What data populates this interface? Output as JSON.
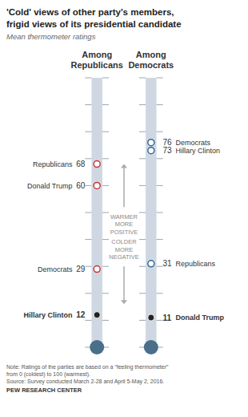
{
  "chart_data": {
    "type": "scatter",
    "title": "'Cold' views of other party’s members,\nfrigid views of its presidential candidate",
    "subtitle": "Mean thermometer ratings",
    "categories": [
      "Among\nRepublicans",
      "Among\nDemocrats"
    ],
    "series": [
      {
        "x": [
          "Among\nRepublicans",
          "Among\nRepublicans",
          "Among\nRepublicans"
        ],
        "values": [
          68,
          60,
          29
        ],
        "labels": [
          "Republicans",
          "Donald Trump",
          "Democrats"
        ],
        "color": "#cc3333",
        "marker": "open_circle"
      },
      {
        "x": [
          "Among\nRepublicans"
        ],
        "values": [
          12
        ],
        "labels": [
          "Hillary Clinton"
        ],
        "color": "#222222",
        "marker": "circle"
      },
      {
        "x": [
          "Among\nDemocrats",
          "Among\nDemocrats",
          "Among\nDemocrats"
        ],
        "values": [
          76,
          73,
          31
        ],
        "labels": [
          "Democrats",
          "Hillary Clinton",
          "Republicans"
        ],
        "color": "#336699",
        "marker": "open_circle"
      },
      {
        "x": [
          "Among\nDemocrats"
        ],
        "values": [
          11
        ],
        "labels": [
          "Donald Trump"
        ],
        "color": "#222222",
        "marker": "circle"
      }
    ],
    "ylim": [
      0,
      100
    ],
    "yticks": [
      0,
      10,
      20,
      30,
      40,
      50,
      60,
      70,
      80,
      90,
      100
    ],
    "tick_labels": false,
    "grid": false,
    "data_labels": true,
    "annotations": [
      "WARMER\nMORE\nPOSITIVE",
      "COLDER\nMORE\nNEGATIVE"
    ],
    "note": "Note: Ratings of the parties are based on a “feeling thermometer”\nfrom 0 (coldest) to 100 (warmest).\nSource: Survey conducted March 2-28 and April 5-May 2, 2016.",
    "source": "PEW RESEARCH CENTER"
  }
}
